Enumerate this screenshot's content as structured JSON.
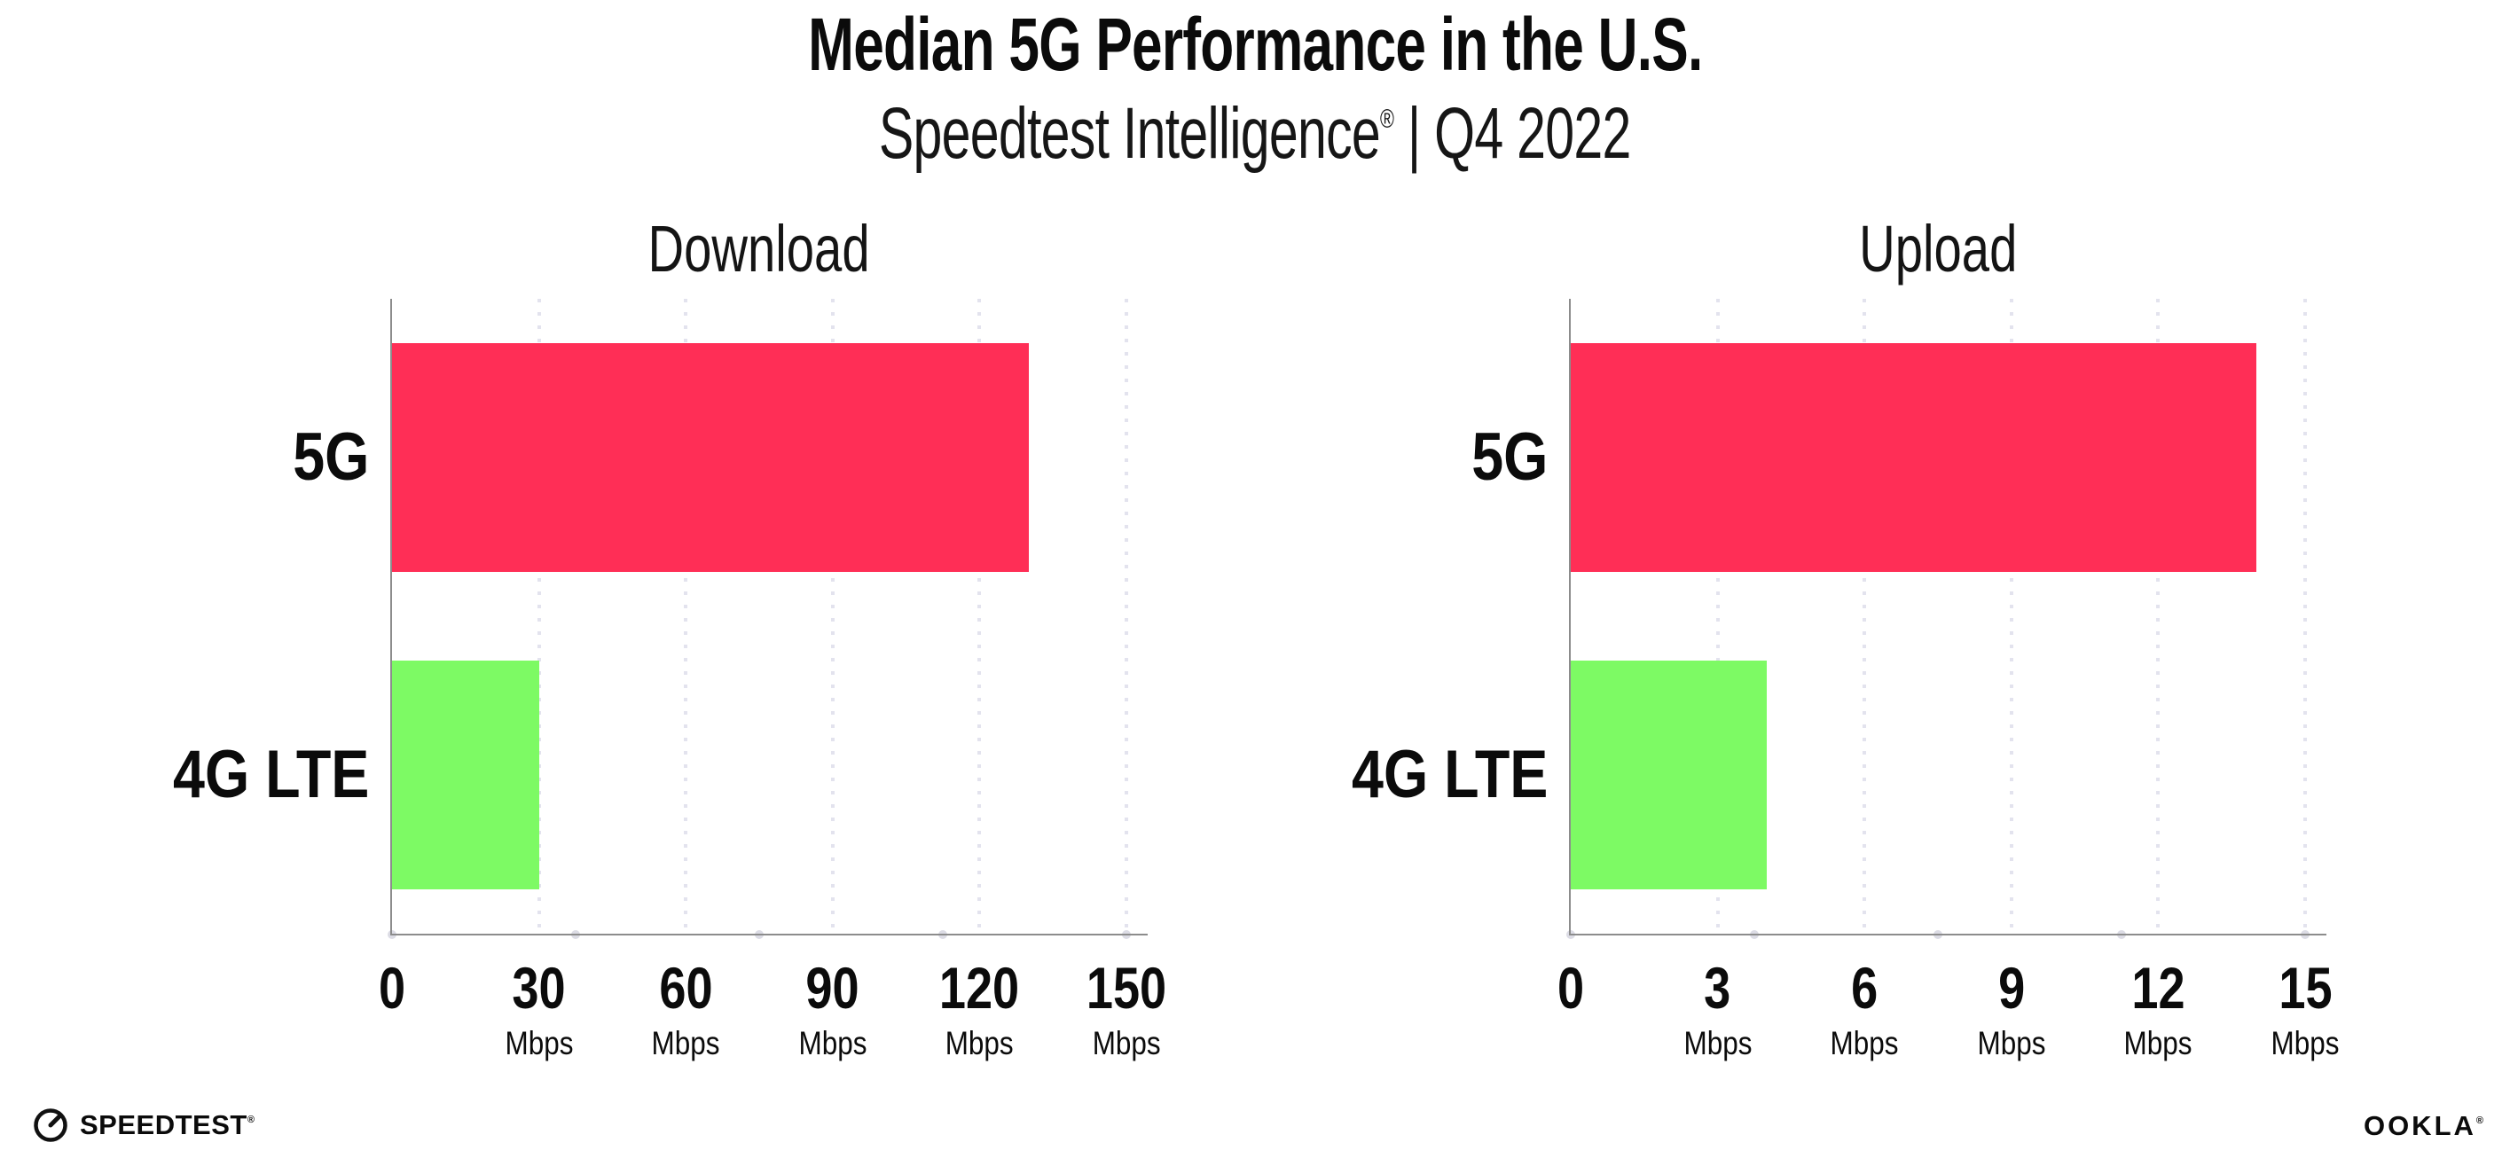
{
  "header": {
    "title": "Median 5G Performance in the U.S.",
    "subtitle_brand": "Speedtest Intelligence",
    "subtitle_reg": "®",
    "subtitle_rest": " | Q4 2022"
  },
  "colors": {
    "bar_5g": "#ff2e56",
    "bar_4g_lte": "#7dfa64",
    "axis": "#8c8c8c",
    "gridline": "#e3e3ee"
  },
  "chart_data": [
    {
      "type": "bar",
      "orientation": "horizontal",
      "title": "Download",
      "categories": [
        "5G",
        "4G LTE"
      ],
      "values": [
        130,
        30
      ],
      "unit": "Mbps",
      "xlabel": "",
      "xlim": [
        0,
        150
      ],
      "xticks": [
        0,
        30,
        60,
        90,
        120,
        150
      ],
      "bar_colors": [
        "#ff2e56",
        "#7dfa64"
      ],
      "grid": "dotted-vertical-at-ticks",
      "legend": "none"
    },
    {
      "type": "bar",
      "orientation": "horizontal",
      "title": "Upload",
      "categories": [
        "5G",
        "4G LTE"
      ],
      "values": [
        14,
        4
      ],
      "unit": "Mbps",
      "xlabel": "",
      "xlim": [
        0,
        15
      ],
      "xticks": [
        0,
        3,
        6,
        9,
        12,
        15
      ],
      "bar_colors": [
        "#ff2e56",
        "#7dfa64"
      ],
      "grid": "dotted-vertical-at-ticks",
      "legend": "none"
    }
  ],
  "footer": {
    "speedtest_label": "SPEEDTEST",
    "speedtest_reg": "®",
    "ookla_label": "OOKLA",
    "ookla_reg": "®"
  }
}
